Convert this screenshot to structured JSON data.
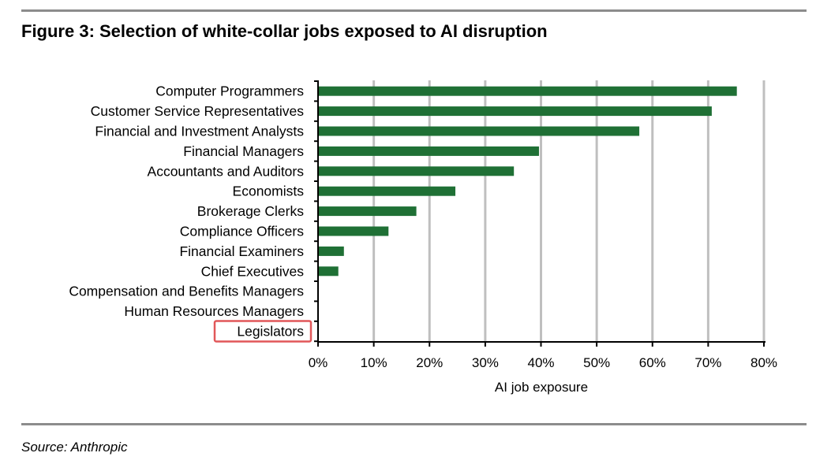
{
  "figure": {
    "title": "Figure 3: Selection of white-collar jobs exposed to AI disruption",
    "source": "Source: Anthropic"
  },
  "colors": {
    "bar": "#1f7035",
    "grid": "#bfbfbf",
    "highlight_box": "#e15759",
    "rule": "#8c8c8c"
  },
  "chart_data": {
    "type": "bar",
    "orientation": "horizontal",
    "categories": [
      "Computer Programmers",
      "Customer Service Representatives",
      "Financial and Investment Analysts",
      "Financial Managers",
      "Accountants and Auditors",
      "Economists",
      "Brokerage Clerks",
      "Compliance Officers",
      "Financial Examiners",
      "Chief Executives",
      "Compensation and Benefits Managers",
      "Human Resources Managers",
      "Legislators"
    ],
    "values": [
      0.75,
      0.705,
      0.575,
      0.395,
      0.35,
      0.245,
      0.175,
      0.125,
      0.045,
      0.035,
      0,
      0,
      0
    ],
    "xlim": [
      0,
      0.8
    ],
    "xticks": [
      0,
      0.1,
      0.2,
      0.3,
      0.4,
      0.5,
      0.6,
      0.7,
      0.8
    ],
    "xtick_labels": [
      "0%",
      "10%",
      "20%",
      "30%",
      "40%",
      "50%",
      "60%",
      "70%",
      "80%"
    ],
    "xlabel": "AI job exposure",
    "ylabel": "",
    "grid": "vertical",
    "legend": "none",
    "highlighted_category": "Legislators"
  }
}
